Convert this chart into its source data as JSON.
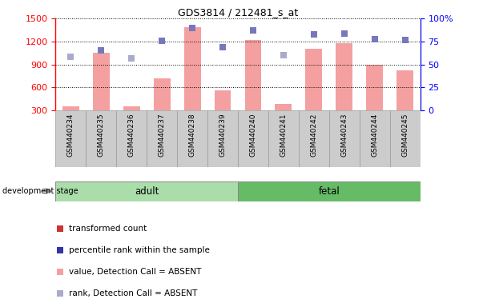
{
  "title": "GDS3814 / 212481_s_at",
  "categories": [
    "GSM440234",
    "GSM440235",
    "GSM440236",
    "GSM440237",
    "GSM440238",
    "GSM440239",
    "GSM440240",
    "GSM440241",
    "GSM440242",
    "GSM440243",
    "GSM440244",
    "GSM440245"
  ],
  "bar_values": [
    355,
    1050,
    355,
    720,
    1390,
    560,
    1220,
    390,
    1100,
    1180,
    900,
    820
  ],
  "bar_absent": [
    true,
    false,
    true,
    false,
    false,
    false,
    false,
    true,
    false,
    false,
    false,
    false
  ],
  "dot_values": [
    1000,
    1080,
    980,
    1210,
    1380,
    1130,
    1340,
    1020,
    1290,
    1300,
    1230,
    1220
  ],
  "dot_absent": [
    true,
    false,
    true,
    false,
    false,
    false,
    false,
    true,
    false,
    false,
    false,
    false
  ],
  "left_ylim": [
    300,
    1500
  ],
  "left_yticks": [
    300,
    600,
    900,
    1200,
    1500
  ],
  "right_ylim": [
    0,
    100
  ],
  "right_yticks": [
    0,
    25,
    50,
    75,
    100
  ],
  "bar_color": "#f4a0a0",
  "dot_color_present": "#7777bb",
  "dot_color_absent": "#aaaacc",
  "group_adult_color": "#aaddaa",
  "group_fetal_color": "#66bb66",
  "adult_range": [
    0,
    6
  ],
  "fetal_range": [
    6,
    12
  ],
  "adult_label": "adult",
  "fetal_label": "fetal",
  "dev_stage_label": "development stage",
  "legend_entries": [
    {
      "label": "transformed count",
      "color": "#cc3333",
      "marker": "s",
      "size": 6
    },
    {
      "label": "percentile rank within the sample",
      "color": "#3333aa",
      "marker": "s",
      "size": 6
    },
    {
      "label": "value, Detection Call = ABSENT",
      "color": "#f4a0a0",
      "marker": "s",
      "size": 6
    },
    {
      "label": "rank, Detection Call = ABSENT",
      "color": "#aaaacc",
      "marker": "s",
      "size": 6
    }
  ],
  "tick_box_color": "#cccccc",
  "tick_box_edge_color": "#999999"
}
